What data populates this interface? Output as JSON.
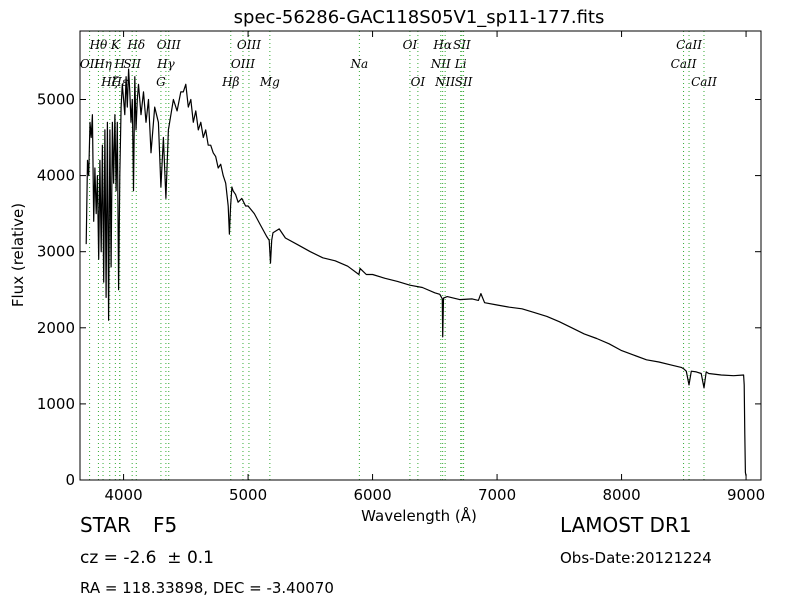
{
  "chart_data": {
    "type": "line",
    "title": "spec-56286-GAC118S05V1_sp11-177.fits",
    "xlabel": "Wavelength (Å)",
    "ylabel": "Flux (relative)",
    "xlim": [
      3650,
      9120
    ],
    "ylim": [
      0,
      5900
    ],
    "x_ticks": [
      4000,
      5000,
      6000,
      7000,
      8000,
      9000
    ],
    "y_ticks": [
      0,
      1000,
      2000,
      3000,
      4000,
      5000
    ],
    "grid": false,
    "line_color": "#000000",
    "marker_color": "#33aa33",
    "series": [
      {
        "x": [
          3700,
          3710,
          3720,
          3730,
          3740,
          3750,
          3760,
          3770,
          3780,
          3790,
          3800,
          3810,
          3820,
          3830,
          3840,
          3850,
          3860,
          3870,
          3880,
          3890,
          3900,
          3910,
          3920,
          3930,
          3940,
          3950,
          3960,
          3970,
          3980,
          3990,
          4000,
          4010,
          4020,
          4030,
          4040,
          4050,
          4060,
          4070,
          4080,
          4090,
          4100,
          4110,
          4120,
          4140,
          4160,
          4180,
          4200,
          4220,
          4250,
          4280,
          4300,
          4320,
          4340,
          4360,
          4380,
          4400,
          4430,
          4460,
          4480,
          4500,
          4520,
          4540,
          4560,
          4580,
          4600,
          4620,
          4640,
          4660,
          4680,
          4700,
          4720,
          4740,
          4760,
          4780,
          4800,
          4820,
          4840,
          4850,
          4860,
          4870,
          4880,
          4900,
          4920,
          4950,
          4980,
          5000,
          5050,
          5100,
          5150,
          5170,
          5180,
          5190,
          5200,
          5250,
          5300,
          5400,
          5500,
          5600,
          5700,
          5800,
          5890,
          5900,
          5950,
          6000,
          6100,
          6200,
          6300,
          6400,
          6500,
          6540,
          6560,
          6563,
          6570,
          6600,
          6700,
          6800,
          6850,
          6870,
          6900,
          7000,
          7100,
          7200,
          7300,
          7400,
          7500,
          7600,
          7700,
          7800,
          7900,
          8000,
          8100,
          8200,
          8300,
          8400,
          8480,
          8500,
          8520,
          8542,
          8560,
          8600,
          8640,
          8662,
          8680,
          8700,
          8800,
          8900,
          8980,
          8985,
          8990,
          8995,
          9000
        ],
        "y": [
          3100,
          4200,
          4000,
          4700,
          4500,
          4800,
          3400,
          4100,
          3500,
          4000,
          2900,
          4200,
          3000,
          4400,
          2600,
          4600,
          2400,
          4700,
          2100,
          4600,
          2800,
          4700,
          3900,
          4800,
          3800,
          4700,
          2500,
          4000,
          4900,
          5200,
          5000,
          4800,
          5300,
          4900,
          5400,
          5100,
          4700,
          5000,
          3800,
          5300,
          4600,
          5000,
          5200,
          4800,
          5100,
          4700,
          5000,
          4300,
          4900,
          4700,
          3850,
          4500,
          3700,
          4600,
          4800,
          5000,
          4850,
          5100,
          5100,
          5200,
          4900,
          5000,
          4700,
          4850,
          4600,
          4700,
          4500,
          4600,
          4400,
          4400,
          4300,
          4250,
          4100,
          4150,
          4000,
          3900,
          3600,
          3230,
          3600,
          3850,
          3800,
          3750,
          3650,
          3700,
          3600,
          3600,
          3500,
          3350,
          3200,
          3150,
          2850,
          3150,
          3250,
          3300,
          3180,
          3090,
          3000,
          2920,
          2880,
          2810,
          2700,
          2780,
          2700,
          2700,
          2650,
          2610,
          2560,
          2530,
          2460,
          2440,
          2380,
          1880,
          2390,
          2410,
          2370,
          2380,
          2360,
          2450,
          2330,
          2300,
          2270,
          2250,
          2200,
          2150,
          2080,
          2000,
          1920,
          1860,
          1790,
          1700,
          1640,
          1580,
          1550,
          1510,
          1480,
          1460,
          1430,
          1250,
          1430,
          1420,
          1400,
          1210,
          1420,
          1400,
          1380,
          1370,
          1380,
          1250,
          600,
          100,
          50
        ]
      }
    ],
    "line_markers": [
      {
        "label": "OII",
        "wl": 3727,
        "row": 1
      },
      {
        "label": "Hθ",
        "wl": 3798,
        "row": 0
      },
      {
        "label": "Hη",
        "wl": 3835,
        "row": 1
      },
      {
        "label": "Hζ",
        "wl": 3889,
        "row": 2
      },
      {
        "label": "K",
        "wl": 3934,
        "row": 0
      },
      {
        "label": "H",
        "wl": 3969,
        "row": 1
      },
      {
        "label": "Hε",
        "wl": 3970,
        "row": 2
      },
      {
        "label": "SII",
        "wl": 4069,
        "row": 1
      },
      {
        "label": "Hδ",
        "wl": 4102,
        "row": 0
      },
      {
        "label": "G",
        "wl": 4300,
        "row": 2
      },
      {
        "label": "Hγ",
        "wl": 4340,
        "row": 1
      },
      {
        "label": "OIII",
        "wl": 4363,
        "row": 0
      },
      {
        "label": "Hβ",
        "wl": 4861,
        "row": 2
      },
      {
        "label": "OIII",
        "wl": 4959,
        "row": 1
      },
      {
        "label": "OIII",
        "wl": 5007,
        "row": 0
      },
      {
        "label": "Mg",
        "wl": 5175,
        "row": 2
      },
      {
        "label": "Na",
        "wl": 5894,
        "row": 1
      },
      {
        "label": "OI",
        "wl": 6300,
        "row": 0
      },
      {
        "label": "OI",
        "wl": 6364,
        "row": 2
      },
      {
        "label": "NII",
        "wl": 6548,
        "row": 1
      },
      {
        "label": "Hα",
        "wl": 6563,
        "row": 0
      },
      {
        "label": "NII",
        "wl": 6583,
        "row": 2
      },
      {
        "label": "Li",
        "wl": 6708,
        "row": 1
      },
      {
        "label": "SII",
        "wl": 6717,
        "row": 0
      },
      {
        "label": "SII",
        "wl": 6731,
        "row": 2
      },
      {
        "label": "CaII",
        "wl": 8498,
        "row": 1
      },
      {
        "label": "CaII",
        "wl": 8542,
        "row": 0
      },
      {
        "label": "CaII",
        "wl": 8662,
        "row": 2
      }
    ]
  },
  "info": {
    "class_type": "STAR",
    "subclass": "F5",
    "survey": "LAMOST DR1",
    "cz": "cz = -2.6  ± 0.1",
    "obs_date": "Obs-Date:20121224",
    "radec": "RA = 118.33898, DEC = -3.40070"
  }
}
